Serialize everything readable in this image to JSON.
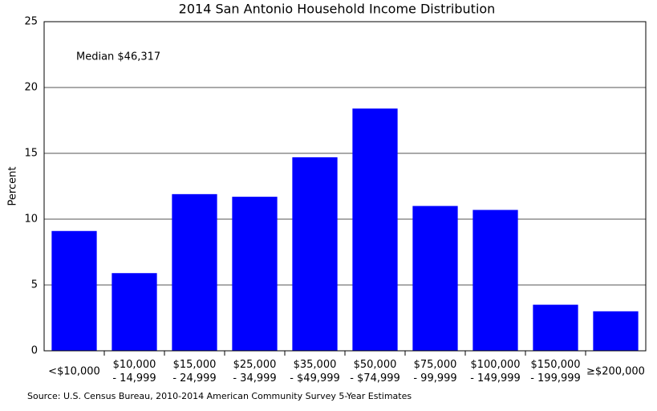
{
  "chart_data": {
    "type": "bar",
    "title": "2014 San Antonio Household Income Distribution",
    "y_label": "Percent",
    "annotation": "Median $46,317",
    "source": "Source: U.S. Census Bureau, 2010-2014 American Community Survey 5-Year Estimates",
    "categories": [
      "<$10,000",
      "$10,000\n- 14,999",
      "$15,000\n- 24,999",
      "$25,000\n- 34,999",
      "$35,000\n- $49,999",
      "$50,000\n- $74,999",
      "$75,000\n- 99,999",
      "$100,000\n- 149,999",
      "$150,000\n- 199,999",
      "≥$200,000"
    ],
    "values": [
      9.1,
      5.9,
      11.9,
      11.7,
      14.7,
      18.4,
      11.0,
      10.7,
      3.5,
      3.0
    ],
    "color": "#0000ff",
    "ylim": [
      0,
      25
    ],
    "yticks": [
      0,
      5,
      10,
      15,
      20,
      25
    ],
    "grid": true
  }
}
